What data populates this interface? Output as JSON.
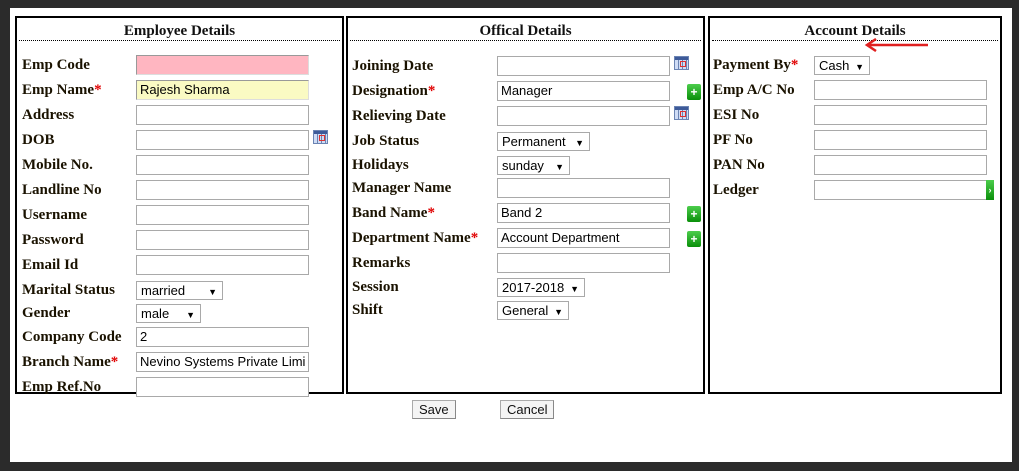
{
  "panels": [
    {
      "title": "Employee Details",
      "fields": [
        {
          "label": "Emp Code",
          "type": "text",
          "value": "",
          "bg": "#ffb6c1"
        },
        {
          "label": "Emp Name",
          "required": true,
          "type": "text",
          "value": "Rajesh Sharma",
          "bg": "#fafac3"
        },
        {
          "label": "Address",
          "type": "text",
          "value": ""
        },
        {
          "label": "DOB",
          "type": "text",
          "value": "",
          "icon": "calendar-icon"
        },
        {
          "label": "Mobile No.",
          "type": "text",
          "value": ""
        },
        {
          "label": "Landline No",
          "type": "text",
          "value": ""
        },
        {
          "label": "Username",
          "type": "text",
          "value": ""
        },
        {
          "label": "Password",
          "type": "text",
          "value": ""
        },
        {
          "label": "Email Id",
          "type": "text",
          "value": ""
        },
        {
          "label": "Marital Status",
          "type": "select",
          "value": "married"
        },
        {
          "label": "Gender",
          "type": "select",
          "value": "male"
        },
        {
          "label": "Company Code",
          "type": "text",
          "value": "2"
        },
        {
          "label": "Branch Name",
          "required": true,
          "type": "text",
          "value": "Nevino Systems Private Limi"
        },
        {
          "label": "Emp Ref.No",
          "type": "text",
          "value": ""
        }
      ]
    },
    {
      "title": "Offical Details",
      "fields": [
        {
          "label": "Joining Date",
          "type": "text",
          "value": "",
          "icon": "calendar-icon"
        },
        {
          "label": "Designation",
          "required": true,
          "type": "text",
          "value": "Manager",
          "icon": "add-icon"
        },
        {
          "label": "Relieving Date",
          "type": "text",
          "value": "",
          "icon": "calendar-icon"
        },
        {
          "label": "Job Status",
          "type": "select",
          "value": "Permanent"
        },
        {
          "label": "Holidays",
          "type": "select",
          "value": "sunday"
        },
        {
          "label": "Manager Name",
          "type": "text",
          "value": ""
        },
        {
          "label": "Band Name",
          "required": true,
          "type": "text",
          "value": "Band 2",
          "icon": "add-icon"
        },
        {
          "label": "Department Name",
          "required": true,
          "type": "text",
          "value": "Account Department",
          "icon": "add-icon"
        },
        {
          "label": "Remarks",
          "type": "text",
          "value": ""
        },
        {
          "label": "Session",
          "type": "select",
          "value": "2017-2018"
        },
        {
          "label": "Shift",
          "type": "select",
          "value": "General"
        }
      ]
    },
    {
      "title": "Account Details",
      "fields": [
        {
          "label": "Payment By",
          "required": true,
          "type": "select",
          "value": "Cash"
        },
        {
          "label": "Emp A/C No",
          "type": "text",
          "value": ""
        },
        {
          "label": "ESI No",
          "type": "text",
          "value": ""
        },
        {
          "label": "PF No",
          "type": "text",
          "value": ""
        },
        {
          "label": "PAN No",
          "type": "text",
          "value": ""
        },
        {
          "label": "Ledger",
          "type": "text",
          "value": "",
          "icon": "lookup-icon"
        }
      ]
    }
  ],
  "required_mark": "*",
  "buttons": {
    "save": "Save",
    "cancel": "Cancel"
  },
  "colors": {
    "required": "#e00000",
    "annotation_arrow": "#e02020",
    "add_button": "#1aa01a"
  }
}
